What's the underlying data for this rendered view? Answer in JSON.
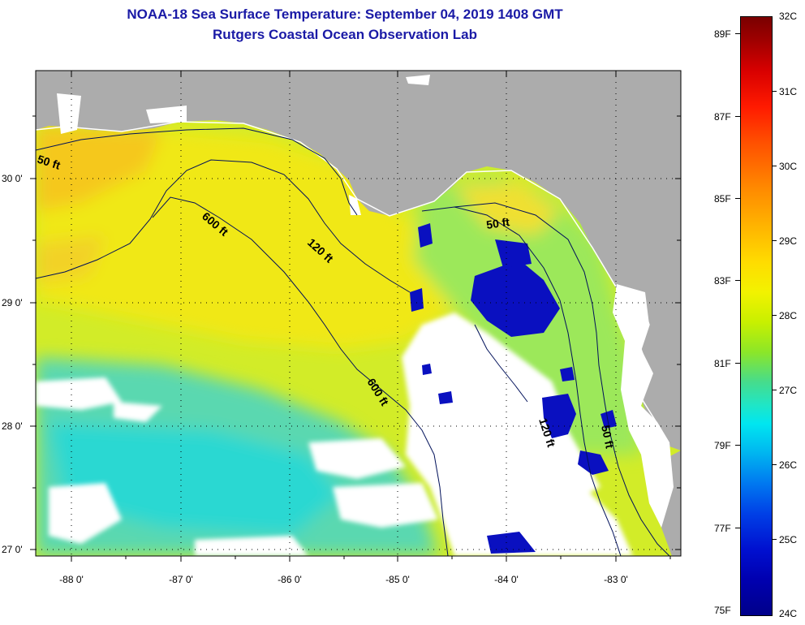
{
  "title": {
    "line1": "NOAA-18 Sea Surface Temperature:  September 04, 2019 1408 GMT",
    "line2": "Rutgers Coastal Ocean Observation Lab"
  },
  "map": {
    "longitude_labels": [
      "-88 0'",
      "-87 0'",
      "-86 0'",
      "-85 0'",
      "-84 0'",
      "-83 0'"
    ],
    "latitude_labels": [
      "30 0'",
      "29 0'",
      "28 0'",
      "27 0'"
    ],
    "contour_labels": [
      "50 ft",
      "600 ft",
      "120 ft",
      "50 ft",
      "600 ft",
      "120 ft",
      "50 ft"
    ],
    "colors": {
      "land": "#acacac",
      "no_data": "#ffffff",
      "warm_shelf": "#f2e600",
      "offshore": "#c8f03c",
      "cool_south": "#46dcb4",
      "upwelling": "#0010c8"
    }
  },
  "colorbar": {
    "celsius_labels": [
      "32C",
      "31C",
      "30C",
      "29C",
      "28C",
      "27C",
      "26C",
      "25C",
      "24C"
    ],
    "fahrenheit_labels": [
      "89F",
      "87F",
      "85F",
      "83F",
      "81F",
      "79F",
      "77F",
      "75F"
    ],
    "range_c": [
      24,
      32
    ],
    "range_f": [
      75,
      89.6
    ]
  }
}
